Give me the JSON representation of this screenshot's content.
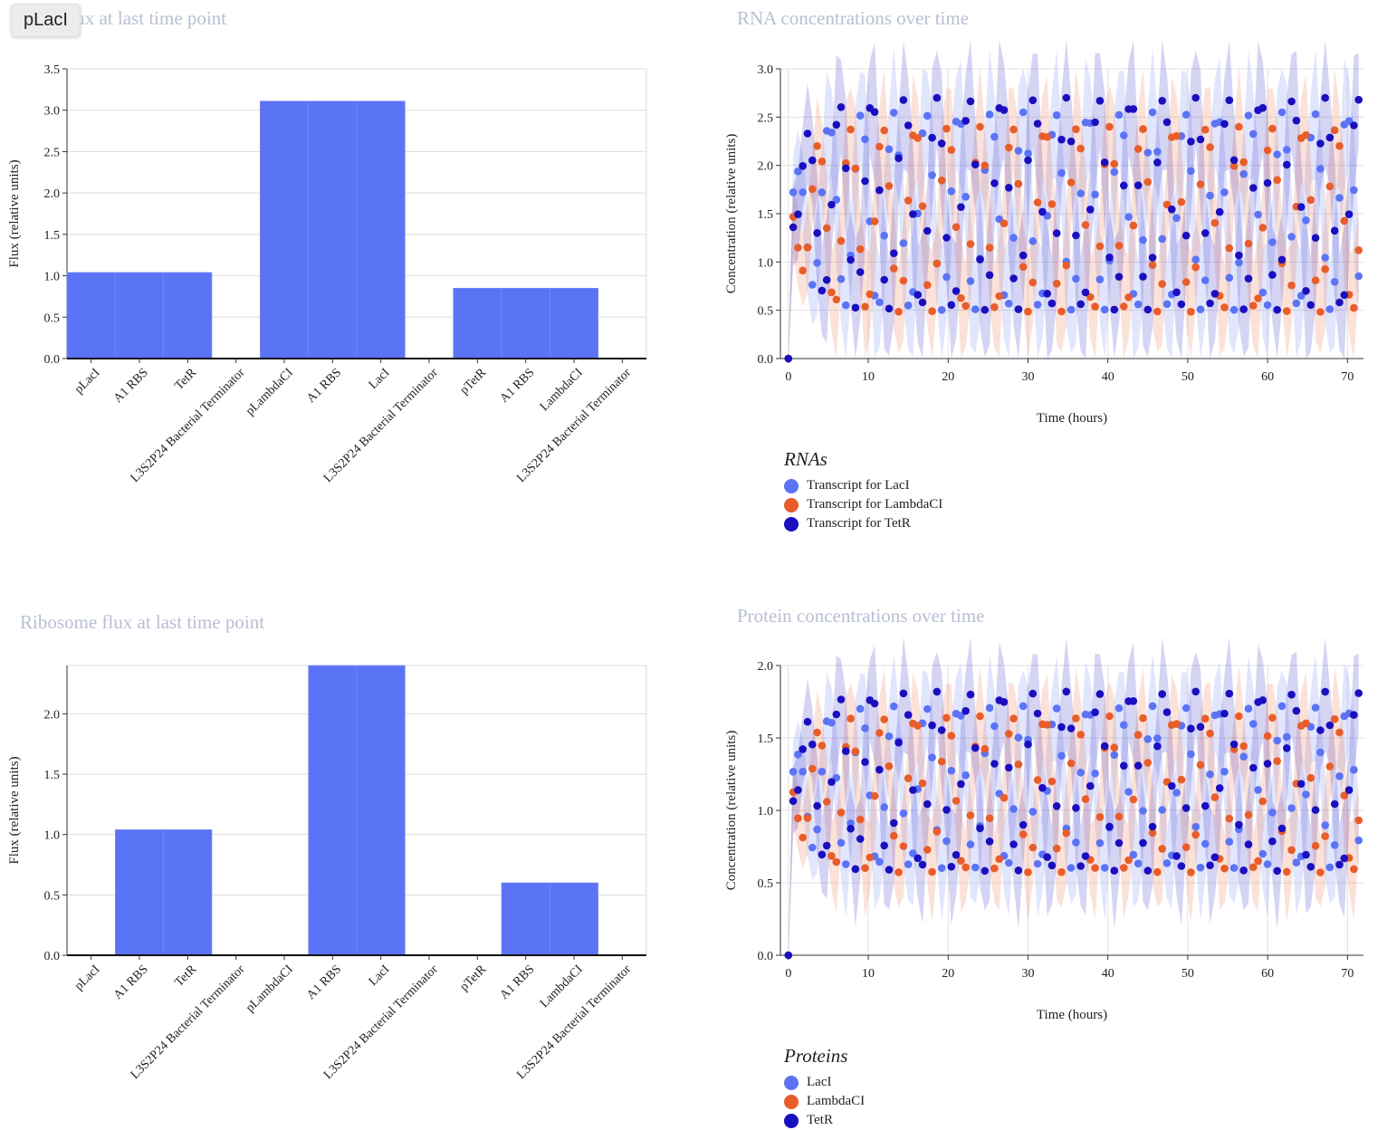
{
  "tooltip": {
    "label": "pLacI"
  },
  "colors": {
    "laci": "#5b73f5",
    "lambdaci": "#e85d2a",
    "tetr": "#1a0fbf",
    "bar": "#5b73f5",
    "title": "#b8bfd2"
  },
  "panels": {
    "rna_flux": {
      "title": "RNA flux at last time point"
    },
    "rna_conc": {
      "title": "RNA concentrations over time",
      "legend_title": "RNAs",
      "legend": [
        "Transcript for LacI",
        "Transcript for LambdaCI",
        "Transcript for TetR"
      ]
    },
    "ribosome_flux": {
      "title": "Ribosome flux at last time point"
    },
    "protein_conc": {
      "title": "Protein concentrations over time",
      "legend_title": "Proteins",
      "legend": [
        "LacI",
        "LambdaCI",
        "TetR"
      ]
    }
  },
  "chart_data": [
    {
      "type": "bar",
      "title": "RNA flux at last time point",
      "xlabel": "",
      "ylabel": "Flux (relative units)",
      "ylim": [
        0,
        3.5
      ],
      "yticks": [
        0.0,
        0.5,
        1.0,
        1.5,
        2.0,
        2.5,
        3.0,
        3.5
      ],
      "categories": [
        "pLacI",
        "A1 RBS",
        "TetR",
        "L3S2P24 Bacterial Terminator",
        "pLambdaCI",
        "A1 RBS",
        "LacI",
        "L3S2P24 Bacterial Terminator",
        "pTetR",
        "A1 RBS",
        "LambdaCI",
        "L3S2P24 Bacterial Terminator"
      ],
      "values": [
        1.04,
        1.04,
        1.04,
        0,
        3.11,
        3.11,
        3.11,
        0,
        0.85,
        0.85,
        0.85,
        0
      ]
    },
    {
      "type": "scatter",
      "title": "RNA concentrations over time",
      "xlabel": "Time (hours)",
      "ylabel": "Concentration (relative units)",
      "xlim": [
        -1,
        72
      ],
      "ylim": [
        0,
        3.0
      ],
      "xticks": [
        0,
        10,
        20,
        30,
        40,
        50,
        60,
        70
      ],
      "yticks": [
        0.0,
        0.5,
        1.0,
        1.5,
        2.0,
        2.5,
        3.0
      ],
      "legend_title": "RNAs",
      "series": [
        {
          "name": "Transcript for LacI",
          "color": "#5b73f5",
          "low": 0.5,
          "high": 2.55,
          "peak": 2.55,
          "phase": 0.0
        },
        {
          "name": "Transcript for LambdaCI",
          "color": "#e85d2a",
          "low": 0.48,
          "high": 2.4,
          "peak": 2.5,
          "phase": 2.09
        },
        {
          "name": "Transcript for TetR",
          "color": "#1a0fbf",
          "low": 0.5,
          "high": 2.7,
          "peak": 2.87,
          "phase": 4.19
        }
      ]
    },
    {
      "type": "bar",
      "title": "Ribosome flux at last time point",
      "xlabel": "",
      "ylabel": "Flux (relative units)",
      "ylim": [
        0,
        2.4
      ],
      "yticks": [
        0.0,
        0.5,
        1.0,
        1.5,
        2.0
      ],
      "categories": [
        "pLacI",
        "A1 RBS",
        "TetR",
        "L3S2P24 Bacterial Terminator",
        "pLambdaCI",
        "A1 RBS",
        "LacI",
        "L3S2P24 Bacterial Terminator",
        "pTetR",
        "A1 RBS",
        "LambdaCI",
        "L3S2P24 Bacterial Terminator"
      ],
      "values": [
        0,
        1.04,
        1.04,
        0,
        0,
        2.4,
        2.4,
        0,
        0,
        0.6,
        0.6,
        0
      ]
    },
    {
      "type": "scatter",
      "title": "Protein concentrations over time",
      "xlabel": "Time (hours)",
      "ylabel": "Concentration (relative units)",
      "xlim": [
        -1,
        72
      ],
      "ylim": [
        0,
        2.0
      ],
      "xticks": [
        0,
        10,
        20,
        30,
        40,
        50,
        60,
        70
      ],
      "yticks": [
        0.0,
        0.5,
        1.0,
        1.5,
        2.0
      ],
      "legend_title": "Proteins",
      "series": [
        {
          "name": "LacI",
          "color": "#5b73f5",
          "low": 0.6,
          "high": 1.72,
          "peak": 1.15,
          "phase": 0.0
        },
        {
          "name": "LambdaCI",
          "color": "#e85d2a",
          "low": 0.57,
          "high": 1.65,
          "peak": 0.95,
          "phase": 2.09
        },
        {
          "name": "TetR",
          "color": "#1a0fbf",
          "low": 0.58,
          "high": 1.82,
          "peak": 1.15,
          "phase": 4.19
        }
      ]
    }
  ]
}
